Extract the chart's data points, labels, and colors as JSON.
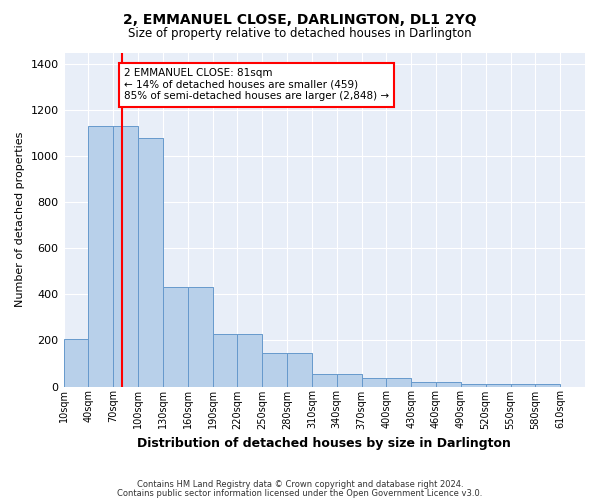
{
  "title": "2, EMMANUEL CLOSE, DARLINGTON, DL1 2YQ",
  "subtitle": "Size of property relative to detached houses in Darlington",
  "xlabel": "Distribution of detached houses by size in Darlington",
  "ylabel": "Number of detached properties",
  "bin_labels": [
    "10sqm",
    "40sqm",
    "70sqm",
    "100sqm",
    "130sqm",
    "160sqm",
    "190sqm",
    "220sqm",
    "250sqm",
    "280sqm",
    "310sqm",
    "340sqm",
    "370sqm",
    "400sqm",
    "430sqm",
    "460sqm",
    "490sqm",
    "520sqm",
    "550sqm",
    "580sqm",
    "610sqm"
  ],
  "bar_heights": [
    205,
    1130,
    1130,
    1080,
    432,
    432,
    230,
    230,
    145,
    145,
    55,
    55,
    35,
    35,
    20,
    20,
    10,
    10,
    10,
    10,
    0
  ],
  "bar_color": "#b8d0ea",
  "bar_edge_color": "#6699cc",
  "ylim": [
    0,
    1450
  ],
  "yticks": [
    0,
    200,
    400,
    600,
    800,
    1000,
    1200,
    1400
  ],
  "property_size": 81,
  "annotation_title": "2 EMMANUEL CLOSE: 81sqm",
  "annotation_line1": "← 14% of detached houses are smaller (459)",
  "annotation_line2": "85% of semi-detached houses are larger (2,848) →",
  "footer1": "Contains HM Land Registry data © Crown copyright and database right 2024.",
  "footer2": "Contains public sector information licensed under the Open Government Licence v3.0.",
  "bg_color": "#e8eef8",
  "fig_bg_color": "#ffffff",
  "grid_color": "#ffffff"
}
